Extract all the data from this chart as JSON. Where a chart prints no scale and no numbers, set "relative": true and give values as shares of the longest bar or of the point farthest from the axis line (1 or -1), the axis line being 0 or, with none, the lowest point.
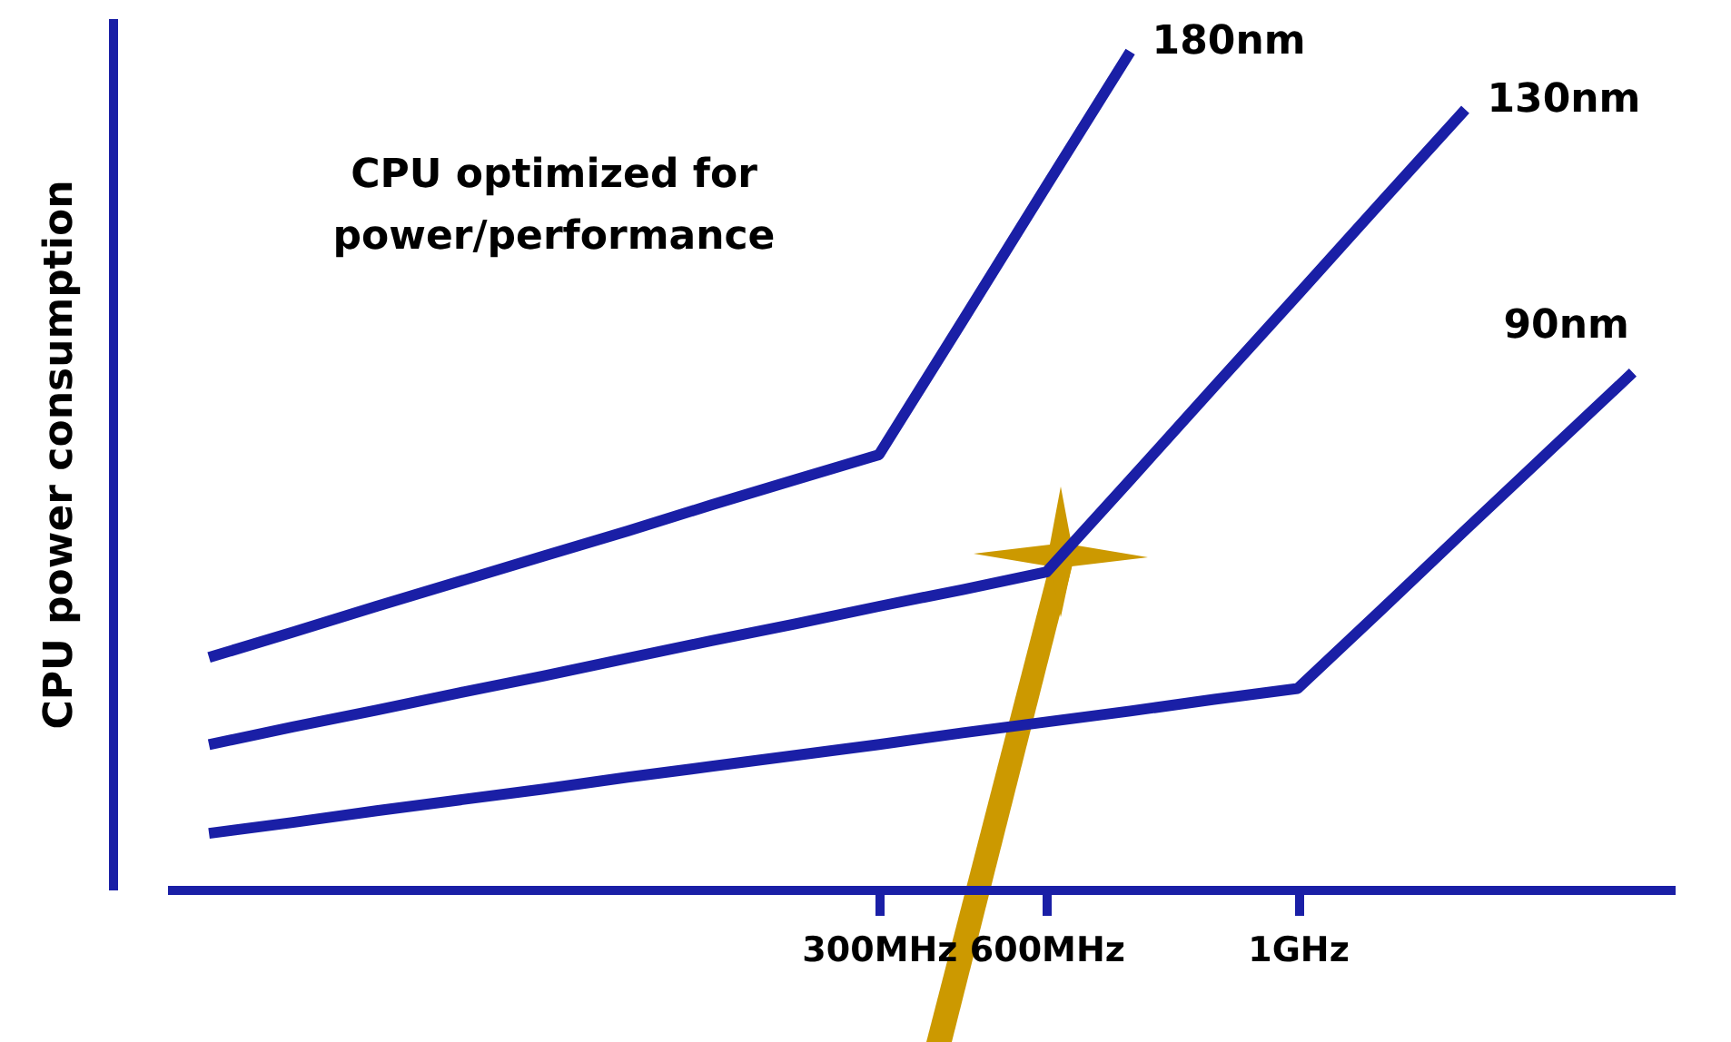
{
  "chart_data": {
    "type": "line",
    "relative": true,
    "ylabel": "CPU power consumption",
    "annotations": [
      "CPU optimized for\npower/performance"
    ],
    "categories": [
      null,
      null,
      null,
      null,
      null,
      null,
      null,
      null,
      "300MHz",
      null,
      "600MHz",
      null,
      null,
      "1GHz",
      null,
      null,
      null,
      null
    ],
    "series": [
      {
        "name": "180nm",
        "color": "#1a1fa6",
        "values": [
          0.277,
          0.307,
          0.338,
          0.368,
          0.398,
          0.428,
          0.459,
          0.489,
          0.519,
          0.679,
          0.84,
          1.0,
          null,
          null,
          null,
          null,
          null,
          null
        ]
      },
      {
        "name": "130nm",
        "color": "#1a1fa6",
        "values": [
          0.173,
          0.194,
          0.214,
          0.235,
          0.255,
          0.276,
          0.297,
          0.317,
          0.338,
          0.358,
          0.379,
          0.489,
          0.6,
          0.71,
          0.821,
          0.931,
          null,
          null
        ]
      },
      {
        "name": "90nm",
        "color": "#1a1fa6",
        "values": [
          0.067,
          0.08,
          0.094,
          0.107,
          0.12,
          0.134,
          0.147,
          0.16,
          0.173,
          0.187,
          0.2,
          0.213,
          0.227,
          0.24,
          0.334,
          0.429,
          0.523,
          0.617
        ]
      }
    ],
    "grid": false,
    "legend": false,
    "marker": "none",
    "line_style": "solid"
  }
}
